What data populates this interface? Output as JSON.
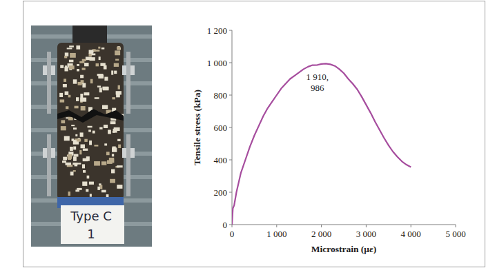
{
  "photo": {
    "label_lines": [
      "Type C",
      "1"
    ]
  },
  "chart_data": {
    "type": "line",
    "x_label": "Microstrain (με)",
    "y_label": "Tensile stress (kPa)",
    "color": "#a64d9e",
    "x": [
      0,
      20,
      50,
      100,
      150,
      200,
      300,
      400,
      500,
      600,
      700,
      800,
      900,
      1000,
      1100,
      1200,
      1300,
      1400,
      1500,
      1600,
      1700,
      1800,
      1910,
      2000,
      2100,
      2200,
      2300,
      2400,
      2500,
      2600,
      2700,
      2800,
      2900,
      3000,
      3100,
      3200,
      3300,
      3400,
      3500,
      3600,
      3700,
      3800,
      3900,
      4000
    ],
    "values": [
      0,
      100,
      120,
      200,
      260,
      320,
      400,
      480,
      550,
      610,
      670,
      720,
      760,
      800,
      840,
      870,
      900,
      920,
      940,
      960,
      975,
      985,
      986,
      992,
      994,
      990,
      980,
      960,
      935,
      900,
      870,
      835,
      790,
      740,
      690,
      635,
      585,
      535,
      490,
      450,
      418,
      390,
      370,
      355
    ],
    "xlim": [
      0,
      5000
    ],
    "xticks": [
      0,
      {
        "value": 1000,
        "label": "1 000"
      },
      {
        "value": 2000,
        "label": "2 000"
      },
      {
        "value": 3000,
        "label": "3 000"
      },
      {
        "value": 4000,
        "label": "4 000"
      },
      {
        "value": 5000,
        "label": "5 000"
      }
    ],
    "ylim": [
      0,
      1200
    ],
    "yticks": [
      0,
      200,
      400,
      600,
      800,
      {
        "value": 1000,
        "label": "1 000"
      },
      {
        "value": 1200,
        "label": "1 200"
      }
    ],
    "grid": false,
    "annotations": [
      {
        "text": "1 910,\n986",
        "x": 1910,
        "y": 986
      }
    ]
  }
}
